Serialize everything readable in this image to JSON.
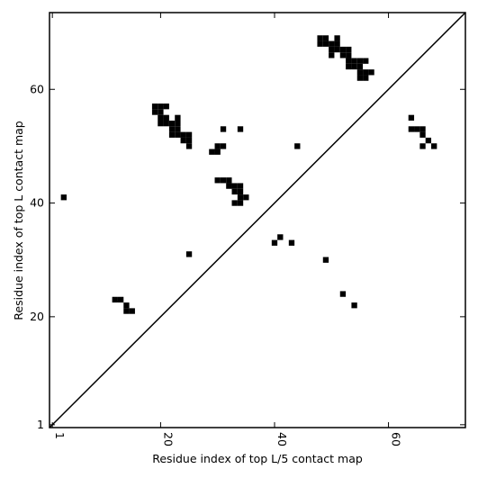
{
  "chart_data": {
    "type": "scatter",
    "xlabel": "Residue index of top L/5 contact map",
    "ylabel": "Residue index of top L contact map",
    "x": [
      12,
      13,
      14,
      14,
      15,
      25,
      40,
      41,
      43,
      49,
      52,
      54,
      3,
      19,
      20,
      21,
      19,
      20,
      20,
      21,
      23,
      20,
      21,
      22,
      23,
      22,
      23,
      22,
      23,
      24,
      25,
      24,
      25,
      25,
      30,
      31,
      29,
      30,
      31,
      34,
      44,
      30,
      31,
      32,
      32,
      33,
      34,
      33,
      34,
      34,
      35,
      33,
      34,
      48,
      49,
      51,
      48,
      49,
      50,
      51,
      50,
      51,
      52,
      53,
      50,
      52,
      53,
      53,
      54,
      55,
      56,
      53,
      54,
      55,
      55,
      56,
      57,
      55,
      56,
      64,
      64,
      65,
      66,
      66,
      67,
      66,
      68
    ],
    "y": [
      23,
      23,
      22,
      21,
      21,
      31,
      33,
      34,
      33,
      30,
      24,
      22,
      41,
      57,
      57,
      57,
      56,
      56,
      55,
      55,
      55,
      54,
      54,
      54,
      54,
      53,
      53,
      52,
      52,
      52,
      52,
      51,
      51,
      50,
      50,
      50,
      49,
      49,
      53,
      53,
      50,
      44,
      44,
      44,
      43,
      43,
      43,
      42,
      42,
      41,
      41,
      40,
      40,
      69,
      69,
      69,
      68,
      68,
      68,
      68,
      67,
      67,
      67,
      67,
      66,
      66,
      66,
      65,
      65,
      65,
      65,
      64,
      64,
      64,
      63,
      63,
      63,
      62,
      62,
      55,
      53,
      53,
      53,
      52,
      51,
      50,
      50
    ],
    "color": "#000000",
    "xlim": [
      0.5,
      73.5
    ],
    "ylim": [
      0.5,
      73.5
    ],
    "xticks": [
      1,
      20,
      40,
      60
    ],
    "yticks": [
      1,
      20,
      40,
      60
    ]
  }
}
